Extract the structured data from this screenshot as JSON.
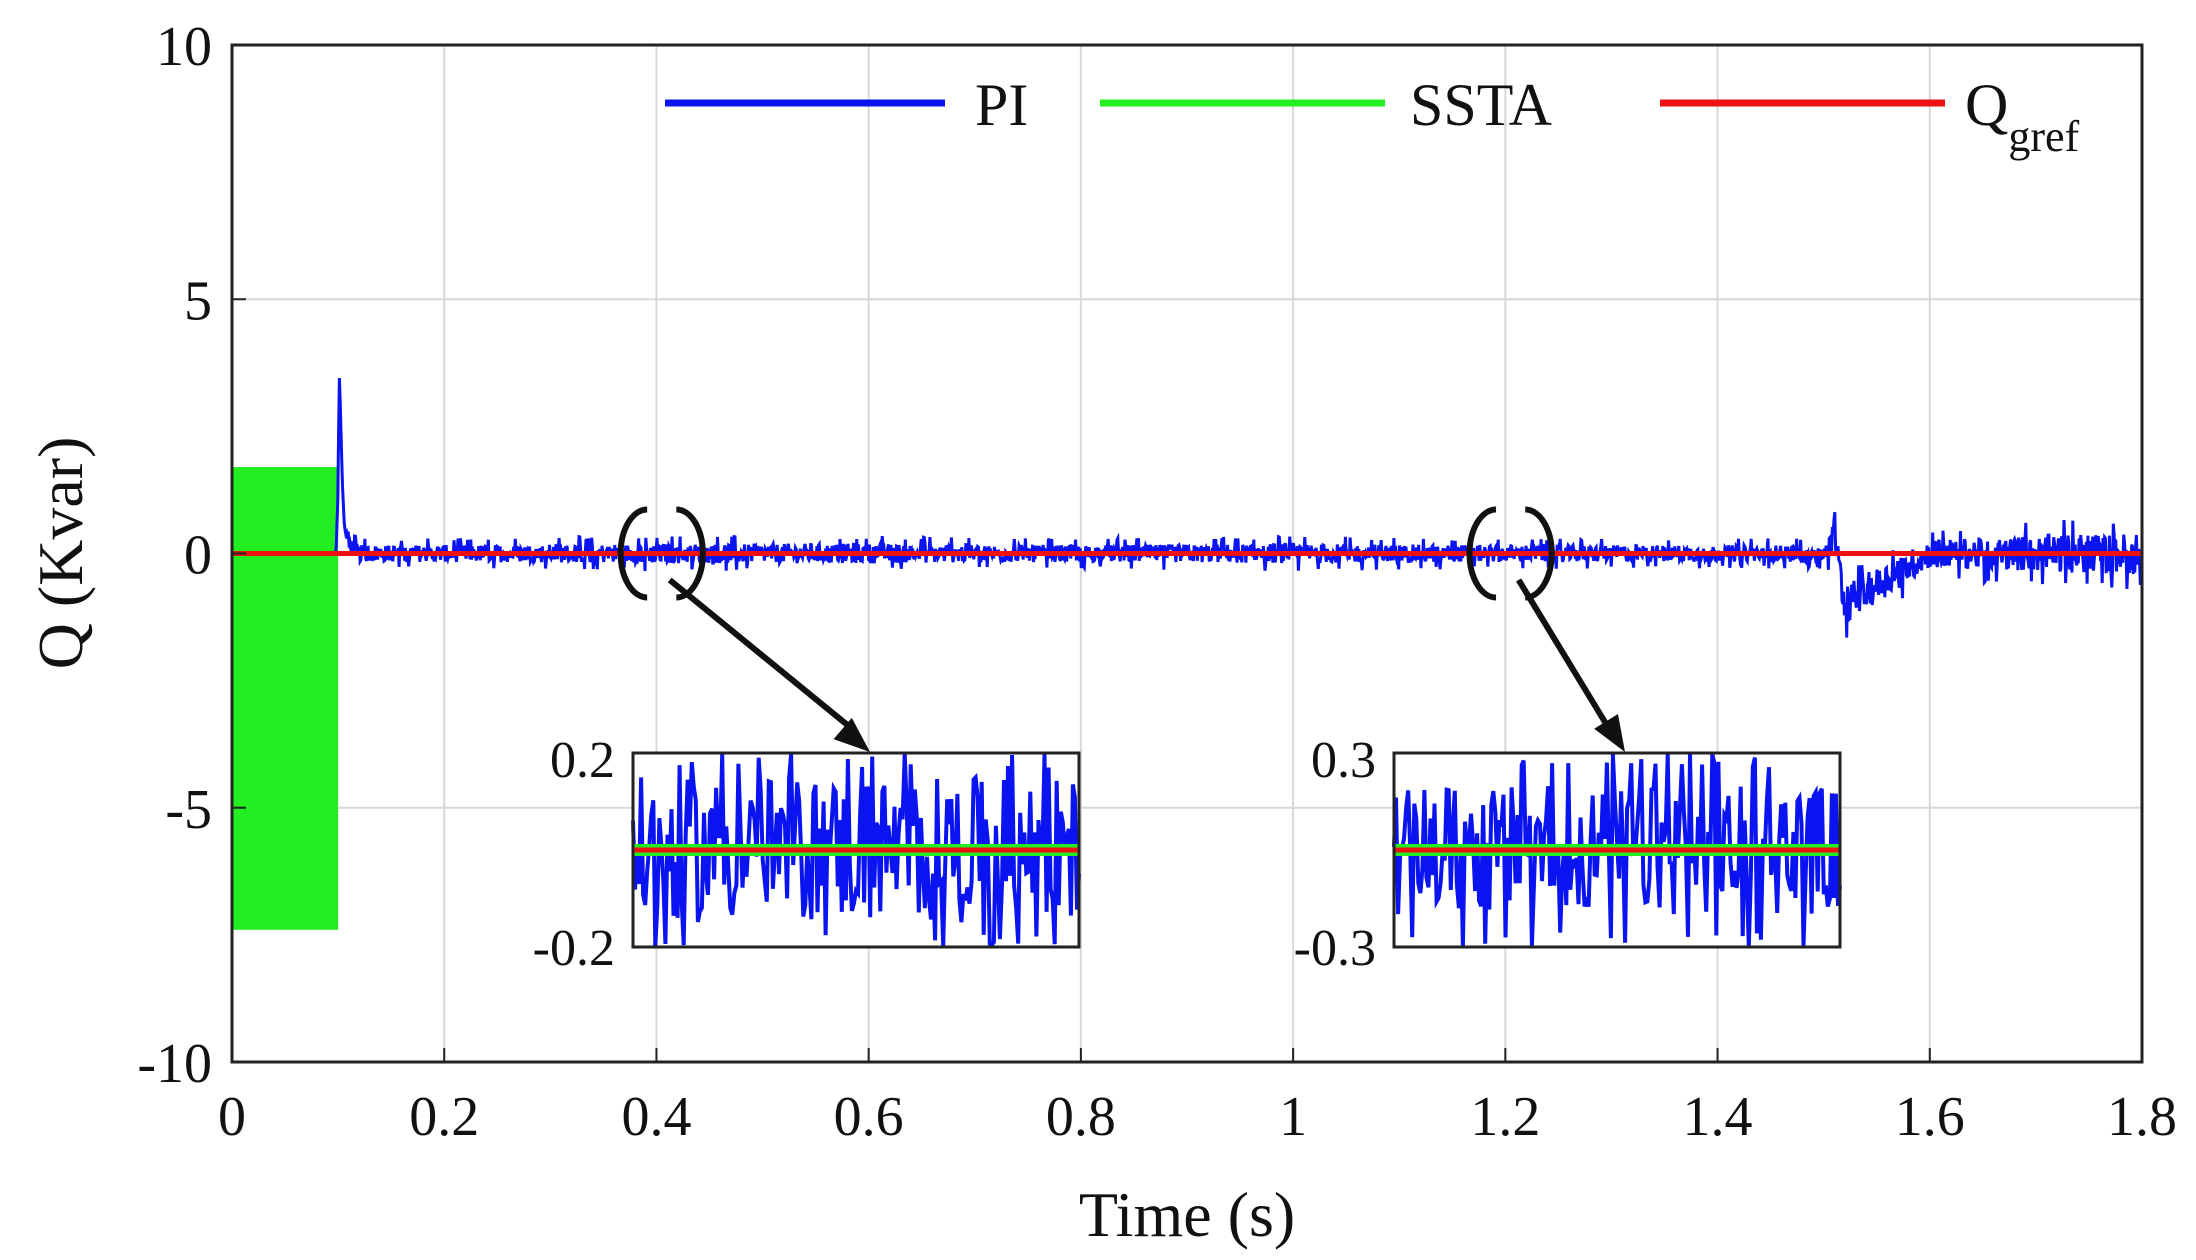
{
  "chart_data": {
    "type": "line",
    "title": "",
    "xlabel": "Time (s)",
    "ylabel": "Q (Kvar)",
    "xlim": [
      0,
      1.8
    ],
    "ylim": [
      -10,
      10
    ],
    "grid": true,
    "legend_position": "top-right",
    "x_ticks": [
      0,
      0.2,
      0.4,
      0.6,
      0.8,
      1,
      1.2,
      1.4,
      1.6,
      1.8
    ],
    "x_tick_labels": [
      "0",
      "0.2",
      "0.4",
      "0.6",
      "0.8",
      "1",
      "1.2",
      "1.4",
      "1.6",
      "1.8"
    ],
    "y_ticks": [
      -10,
      -5,
      0,
      5,
      10
    ],
    "y_tick_labels": [
      "-10",
      "-5",
      "0",
      "5",
      "10"
    ],
    "series": [
      {
        "name": "PI",
        "legend_label": "PI",
        "color": "#0a14f0",
        "description": "reactive power with PI control",
        "x": [
          0,
          0.098,
          0.1,
          0.101,
          0.102,
          0.104,
          0.106,
          0.11,
          0.12,
          0.2,
          0.4,
          0.6,
          0.8,
          1.0,
          1.2,
          1.4,
          1.5,
          1.51,
          1.52,
          1.6,
          1.7,
          1.8
        ],
        "values": [
          0,
          0,
          1.2,
          3.6,
          3.0,
          1.4,
          0.5,
          0.2,
          0.0,
          0.0,
          0.0,
          0.0,
          0.0,
          0.0,
          0.0,
          0.0,
          0.0,
          0.3,
          -1.0,
          0.0,
          0.0,
          0.0
        ],
        "ripple_amplitude": [
          0,
          0,
          0,
          0,
          0,
          0,
          0,
          0.25,
          0.3,
          0.3,
          0.35,
          0.35,
          0.3,
          0.35,
          0.3,
          0.3,
          0.3,
          0.7,
          0.7,
          0.5,
          0.65,
          0.75
        ]
      },
      {
        "name": "SSTA",
        "legend_label": "SSTA",
        "color": "#22ee22",
        "description": "reactive power with SSTA control",
        "x": [
          0,
          0.1,
          0.101,
          1.8
        ],
        "values": [
          0,
          0,
          0,
          0
        ],
        "band_upper": [
          1.7,
          1.7,
          0,
          0
        ],
        "band_lower": [
          -7.4,
          -7.4,
          0,
          0
        ]
      },
      {
        "name": "Qgref",
        "legend_label_main": "Q",
        "legend_label_sub": "gref",
        "color": "#ee1111",
        "description": "reference reactive power",
        "x": [
          0,
          1.8
        ],
        "values": [
          0,
          0
        ]
      }
    ],
    "zoom_insets": [
      {
        "name": "zoom-1",
        "x_range": [
          0.38,
          0.43
        ],
        "y_range": [
          -0.2,
          0.2
        ],
        "y_tick_labels": [
          "0.2",
          "-0.2"
        ],
        "pi_ripple_amplitude": 0.15
      },
      {
        "name": "zoom-2",
        "x_range": [
          1.18,
          1.23
        ],
        "y_range": [
          -0.3,
          0.3
        ],
        "y_tick_labels": [
          "0.3",
          "-0.3"
        ],
        "pi_ripple_amplitude": 0.2
      }
    ]
  }
}
